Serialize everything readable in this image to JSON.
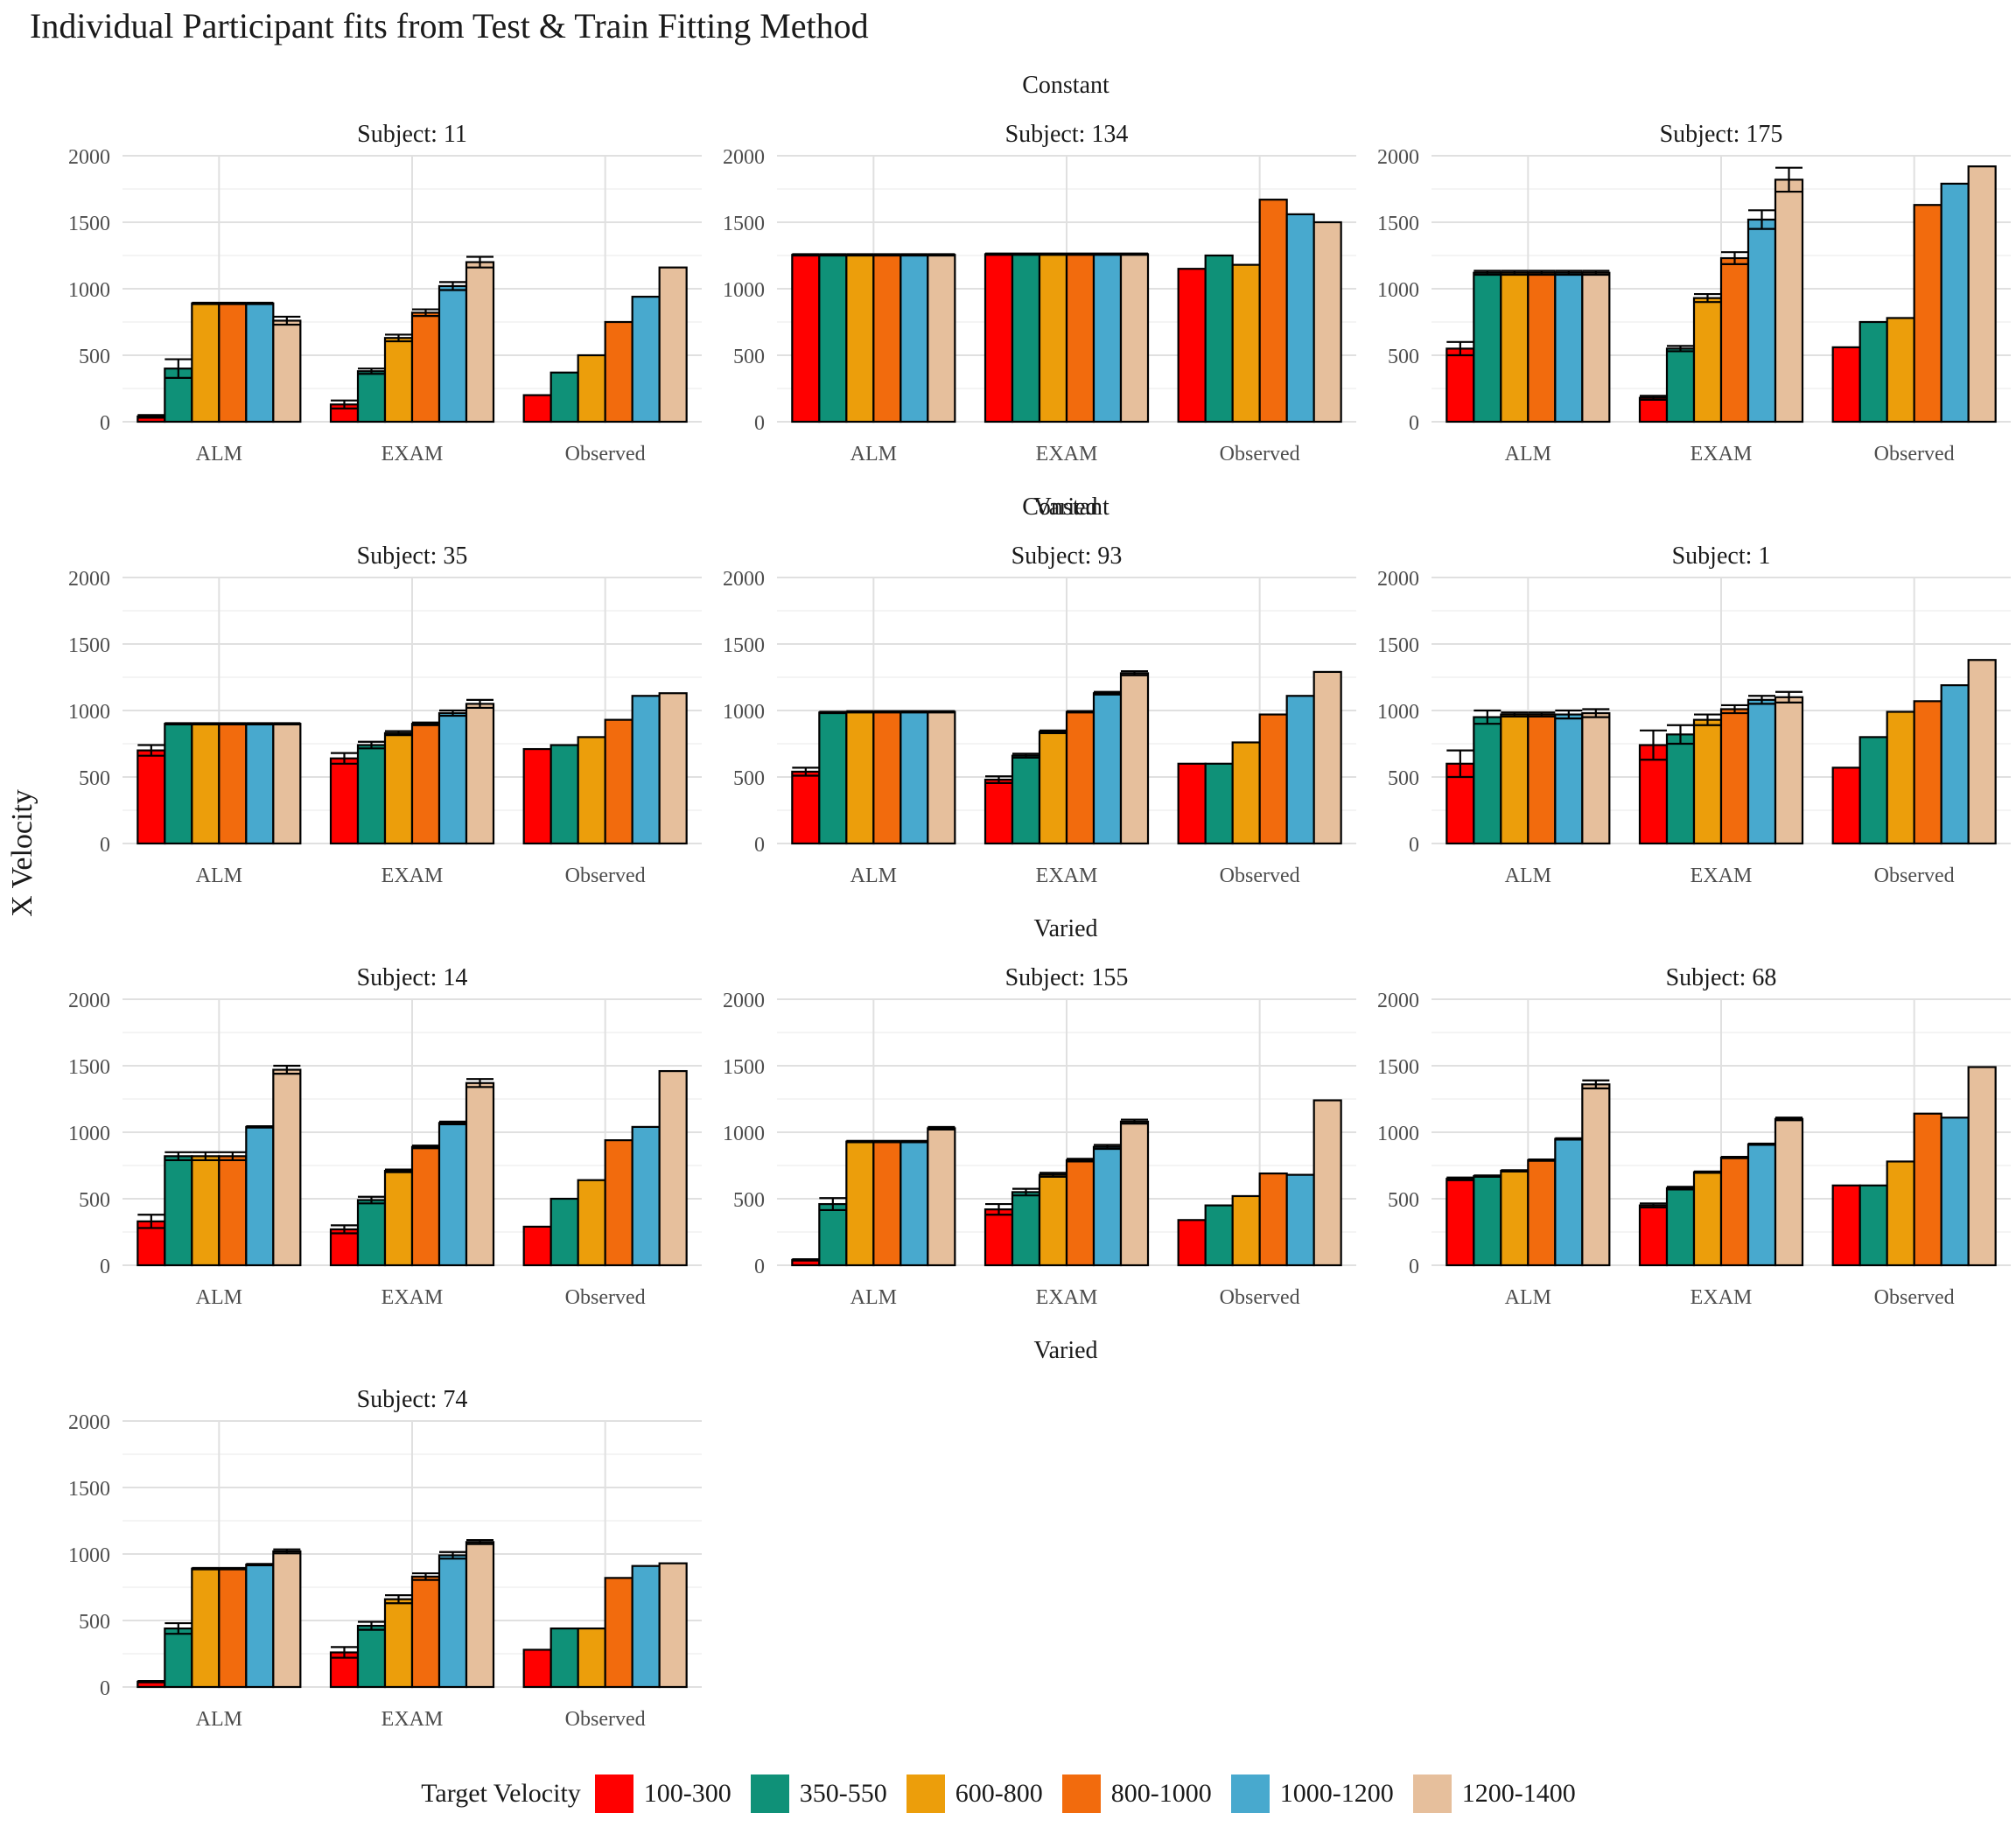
{
  "chart_title": "Individual Participant fits from Test & Train Fitting Method",
  "chart_data": {
    "type": "bar",
    "title": "Individual Participant fits from Test & Train Fitting Method",
    "xlabel": "",
    "ylabel": "X Velocity",
    "ylim": [
      0,
      2000
    ],
    "yticks": [
      0,
      500,
      1000,
      1500,
      2000
    ],
    "grid": true,
    "legend_position": "bottom",
    "legend_title": "Target Velocity",
    "categories": [
      "ALM",
      "EXAM",
      "Observed"
    ],
    "series_names": [
      "100-300",
      "350-550",
      "600-800",
      "800-1000",
      "1000-1200",
      "1200-1400"
    ],
    "series_colors": [
      "#ff0000",
      "#0f9178",
      "#ec9e0b",
      "#f26b0d",
      "#48a9ce",
      "#e6bf9c"
    ],
    "panels": [
      {
        "strip": "Constant",
        "title": "Subject: 11",
        "values": [
          [
            40,
            400,
            890,
            890,
            890,
            760
          ],
          [
            130,
            380,
            630,
            820,
            1020,
            1200
          ],
          [
            200,
            370,
            500,
            750,
            940,
            1160
          ]
        ],
        "errors": [
          [
            10,
            70,
            5,
            5,
            5,
            30
          ],
          [
            30,
            20,
            25,
            25,
            30,
            40
          ],
          [
            0,
            0,
            0,
            0,
            0,
            0
          ]
        ]
      },
      {
        "strip": "",
        "title": "Subject: 134",
        "values": [
          [
            1255,
            1255,
            1255,
            1255,
            1255,
            1255
          ],
          [
            1260,
            1260,
            1260,
            1260,
            1260,
            1260
          ],
          [
            1150,
            1250,
            1180,
            1670,
            1560,
            1500
          ]
        ],
        "errors": [
          [
            5,
            5,
            5,
            5,
            5,
            5
          ],
          [
            5,
            5,
            5,
            5,
            5,
            5
          ],
          [
            0,
            0,
            0,
            0,
            0,
            0
          ]
        ]
      },
      {
        "strip": "",
        "title": "Subject: 175",
        "values": [
          [
            550,
            1120,
            1120,
            1120,
            1120,
            1120
          ],
          [
            180,
            550,
            930,
            1230,
            1520,
            1820
          ],
          [
            560,
            750,
            780,
            1630,
            1790,
            1920
          ]
        ],
        "errors": [
          [
            50,
            15,
            15,
            15,
            15,
            15
          ],
          [
            15,
            20,
            30,
            45,
            70,
            90
          ],
          [
            0,
            0,
            0,
            0,
            0,
            0
          ]
        ]
      },
      {
        "strip": "Constant",
        "title": "Subject: 35",
        "values": [
          [
            700,
            900,
            900,
            900,
            900,
            900
          ],
          [
            640,
            740,
            830,
            900,
            980,
            1050
          ],
          [
            710,
            740,
            800,
            930,
            1110,
            1130
          ]
        ],
        "errors": [
          [
            40,
            5,
            5,
            5,
            5,
            5
          ],
          [
            40,
            25,
            15,
            10,
            20,
            30
          ],
          [
            0,
            0,
            0,
            0,
            0,
            0
          ]
        ]
      },
      {
        "strip": "",
        "title": "Subject: 93",
        "values": [
          [
            540,
            985,
            990,
            990,
            990,
            990
          ],
          [
            480,
            660,
            840,
            990,
            1130,
            1280
          ],
          [
            600,
            600,
            760,
            970,
            1110,
            1290
          ]
        ],
        "errors": [
          [
            30,
            5,
            5,
            5,
            5,
            5
          ],
          [
            25,
            15,
            10,
            5,
            10,
            15
          ],
          [
            0,
            0,
            0,
            0,
            0,
            0
          ]
        ]
      },
      {
        "strip": "Varied",
        "title": "Subject: 1",
        "values": [
          [
            600,
            950,
            970,
            970,
            970,
            980
          ],
          [
            740,
            820,
            930,
            1010,
            1080,
            1100
          ],
          [
            570,
            800,
            990,
            1070,
            1190,
            1380
          ]
        ],
        "errors": [
          [
            100,
            50,
            15,
            15,
            30,
            30
          ],
          [
            110,
            70,
            40,
            30,
            30,
            40
          ],
          [
            0,
            0,
            0,
            0,
            0,
            0
          ]
        ]
      },
      {
        "strip": "",
        "title": "Subject: 14",
        "values": [
          [
            330,
            820,
            820,
            820,
            1040,
            1470
          ],
          [
            270,
            490,
            710,
            890,
            1070,
            1370
          ],
          [
            290,
            500,
            640,
            940,
            1040,
            1460
          ]
        ],
        "errors": [
          [
            50,
            30,
            30,
            30,
            5,
            30
          ],
          [
            30,
            25,
            10,
            10,
            10,
            30
          ],
          [
            0,
            0,
            0,
            0,
            0,
            0
          ]
        ]
      },
      {
        "strip": "Varied",
        "title": "Subject: 155",
        "values": [
          [
            40,
            460,
            930,
            930,
            930,
            1030
          ],
          [
            420,
            550,
            680,
            790,
            890,
            1080
          ],
          [
            340,
            450,
            520,
            690,
            680,
            1240
          ]
        ],
        "errors": [
          [
            5,
            45,
            5,
            5,
            5,
            10
          ],
          [
            40,
            25,
            15,
            10,
            15,
            15
          ],
          [
            0,
            0,
            0,
            0,
            0,
            0
          ]
        ]
      },
      {
        "strip": "",
        "title": "Subject: 68",
        "values": [
          [
            650,
            670,
            710,
            790,
            950,
            1360
          ],
          [
            450,
            580,
            700,
            810,
            910,
            1100
          ],
          [
            600,
            600,
            780,
            1140,
            1110,
            1490
          ]
        ],
        "errors": [
          [
            10,
            5,
            5,
            5,
            5,
            30
          ],
          [
            15,
            10,
            5,
            5,
            5,
            10
          ],
          [
            0,
            0,
            0,
            0,
            0,
            0
          ]
        ]
      },
      {
        "strip": "Varied",
        "title": "Subject: 74",
        "values": [
          [
            40,
            440,
            890,
            890,
            920,
            1020
          ],
          [
            260,
            460,
            660,
            830,
            990,
            1090
          ],
          [
            280,
            440,
            440,
            820,
            910,
            930
          ]
        ],
        "errors": [
          [
            5,
            40,
            5,
            5,
            5,
            15
          ],
          [
            40,
            30,
            30,
            25,
            25,
            15
          ],
          [
            0,
            0,
            0,
            0,
            0,
            0
          ]
        ]
      }
    ]
  }
}
